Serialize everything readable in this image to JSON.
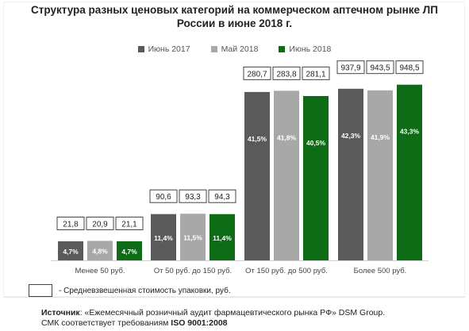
{
  "title_line1": "Структура разных ценовых категорий на коммерческом аптечном рынке ЛП",
  "title_line2": "России в июне 2018 г.",
  "note": "- Средневзвешенная стоимость упаковки, руб.",
  "source_label": "Источник",
  "source_text": ": «Ежемесячный розничный аудит фармацевтического рынка РФ» DSM Group.",
  "source_line2_prefix": "СМК соответствует требованиям ",
  "source_line2_bold": "ISO 9001:2008",
  "colors": {
    "s1": "#5a5a5a",
    "s2": "#a8a8a8",
    "s3": "#0e6b16"
  },
  "chart_data": {
    "type": "bar",
    "categories": [
      "Менее 50 руб.",
      "От 50 руб. до 150 руб.",
      "От 150 руб. до 500 руб.",
      "Более 500 руб."
    ],
    "series": [
      {
        "name": "Июнь 2017",
        "values": [
          4.7,
          11.4,
          41.5,
          42.3
        ],
        "labels": [
          "4,7%",
          "11,4%",
          "41,5%",
          "42,3%"
        ],
        "prices": [
          "21,8",
          "90,6",
          "280,7",
          "937,9"
        ]
      },
      {
        "name": "Май 2018",
        "values": [
          4.8,
          11.5,
          41.8,
          41.9
        ],
        "labels": [
          "4,8%",
          "11,5%",
          "41,8%",
          "41,9%"
        ],
        "prices": [
          "20,9",
          "93,3",
          "283,8",
          "943,5"
        ]
      },
      {
        "name": "Июнь 2018",
        "values": [
          4.7,
          11.4,
          40.5,
          43.3
        ],
        "labels": [
          "4,7%",
          "11,4%",
          "40,5%",
          "43,3%"
        ],
        "prices": [
          "21,1",
          "94,3",
          "281,1",
          "948,5"
        ]
      }
    ],
    "ylim": [
      0,
      45
    ],
    "grid": false,
    "legend": "top"
  }
}
